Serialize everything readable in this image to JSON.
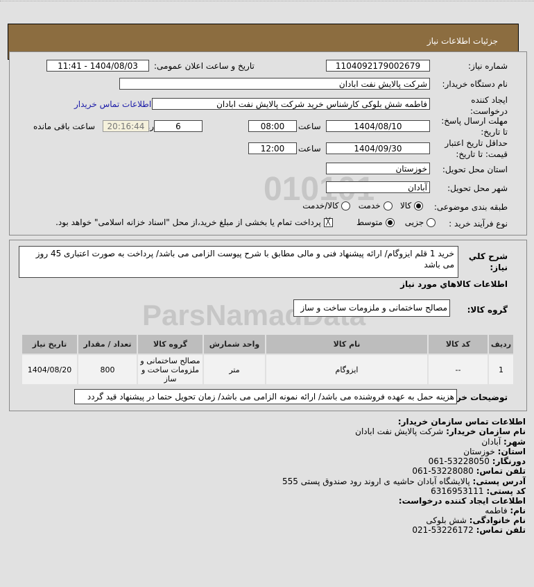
{
  "header": {
    "title": "جزئیات اطلاعات نیاز"
  },
  "form": {
    "need_number_label": "شماره نیاز:",
    "need_number": "1104092179002679",
    "announce_label": "تاریخ و ساعت اعلان عمومی:",
    "announce_value": "1404/08/03 - 11:41",
    "buyer_label": "نام دستگاه خریدار:",
    "buyer_value": "شرکت پالایش نفت ابادان",
    "creator_label_1": "ایجاد کننده",
    "creator_label_2": "درخواست:",
    "creator_value": "فاطمه شش بلوکی کارشناس خرید شرکت پالایش نفت ابادان",
    "contact_link": "اطلاعات تماس خریدار",
    "deadline_label_1": "مهلت ارسال پاسخ:",
    "deadline_label_2": "تا تاریخ:",
    "deadline_date": "1404/08/10",
    "time_label": "ساعت",
    "deadline_time": "08:00",
    "days": "6",
    "days_label": "روز و",
    "remaining": "20:16:44",
    "remaining_label": "ساعت باقی مانده",
    "validity_label_1": "حداقل تاریخ اعتبار",
    "validity_label_2": "قیمت: تا تاریخ:",
    "validity_date": "1404/09/30",
    "validity_time": "12:00",
    "province_label": "استان محل تحویل:",
    "province_value": "خوزستان",
    "city_label": "شهر محل تحویل:",
    "city_value": "آبادان",
    "category_label": "طبقه بندی موضوعی:",
    "category_options": [
      "کالا",
      "خدمت",
      "کالا/خدمت"
    ],
    "category_selected": "کالا",
    "process_label": "نوع فرآیند خرید :",
    "process_options": [
      "جزیی",
      "متوسط"
    ],
    "process_selected": "متوسط",
    "payment_note": "پرداخت تمام یا بخشی از مبلغ خرید،از محل \"اسناد خزانه اسلامی\" خواهد بود."
  },
  "details": {
    "desc_label_1": "شرح کلي",
    "desc_label_2": "نياز:",
    "desc_value": "خرید 1 قلم ایزوگام/ ارائه پیشنهاد فنی و مالی مطابق با شرح پیوست الزامی می باشد/ پرداخت به صورت اعتباری 45 روز می باشد",
    "goods_heading": "اطلاعات کالاهاي مورد نياز",
    "group_label": "گروه کالا:",
    "group_value": "مصالح ساختمانی و ملزومات ساخت و ساز",
    "table": {
      "headers": [
        "ردیف",
        "کد کالا",
        "نام کالا",
        "واحد شمارش",
        "گروه کالا",
        "تعداد / مقدار",
        "تاریخ نیاز"
      ],
      "rows": [
        [
          "1",
          "--",
          "ایزوگام",
          "متر",
          "مصالح ساختمانی و ملزومات ساخت و ساز",
          "800",
          "1404/08/20"
        ]
      ]
    },
    "notes_label": "توضیحات خریدار:",
    "notes_value": "هزینه حمل به عهده فروشنده می باشد/ ارائه نمونه الزامی می باشد/ زمان تحویل حتما در پیشنهاد قید گردد"
  },
  "contact": {
    "heading": "اطلاعات تماس سازمان خریدار:",
    "org_label": "نام سازمان خریدار:",
    "org": "شرکت پالایش نفت ابادان",
    "city_label": "شهر:",
    "city": "آبادان",
    "province_label": "استان:",
    "province": "خوزستان",
    "fax_label": "دورنگار:",
    "fax": "53228050-061",
    "phone_label": "تلفن تماس:",
    "phone": "53228080-061",
    "address_label": "آدرس پستی:",
    "address": "پالایشگاه آبادان حاشیه ی اروند رود صندوق پستی 555",
    "postal_label": "کد پستی:",
    "postal": "6316953111",
    "creator_heading": "اطلاعات ایجاد کننده درخواست:",
    "name_label": "نام:",
    "name": "فاطمه",
    "family_label": "نام خانوادگی:",
    "family": "شش بلوکی",
    "creator_phone_label": "تلفن تماس:",
    "creator_phone": "53226172-021"
  },
  "watermark": {
    "brand": "ParsNamadData"
  },
  "colors": {
    "header_bg": "#8c6d40",
    "link": "#1a1aa8",
    "readonly_bg": "#f5f1dc"
  }
}
